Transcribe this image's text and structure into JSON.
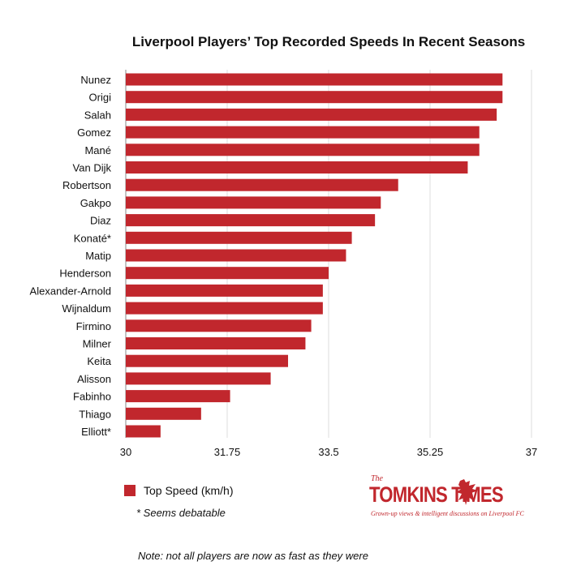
{
  "chart_data": {
    "type": "bar",
    "orientation": "horizontal",
    "title": "Liverpool Players’ Top Recorded Speeds In Recent Seasons",
    "categories": [
      "Nunez",
      "Origi",
      "Salah",
      "Gomez",
      "Mané",
      "Van Dijk",
      "Robertson",
      "Gakpo",
      "Diaz",
      "Konaté*",
      "Matip",
      "Henderson",
      "Alexander-Arnold",
      "Wijnaldum",
      "Firmino",
      "Milner",
      "Keita",
      "Alisson",
      "Fabinho",
      "Thiago",
      "Elliott*"
    ],
    "series": [
      {
        "name": "Top Speed (km/h)",
        "values": [
          36.5,
          36.5,
          36.4,
          36.1,
          36.1,
          35.9,
          34.7,
          34.4,
          34.3,
          33.9,
          33.8,
          33.5,
          33.4,
          33.4,
          33.2,
          33.1,
          32.8,
          32.5,
          31.8,
          31.3,
          30.6
        ]
      }
    ],
    "xlim": [
      30,
      37
    ],
    "xticks": [
      "30",
      "31.75",
      "33.5",
      "35.25",
      "37"
    ],
    "xtick_values": [
      30,
      31.75,
      33.5,
      35.25,
      37
    ],
    "xlabel": "",
    "ylabel": "",
    "grid": true,
    "legend_position": "bottom-left",
    "bar_color": "#c1272d"
  },
  "legend": {
    "label": "Top Speed (km/h)"
  },
  "footnote": "* Seems debatable",
  "note": "Note: not all players are now as fast as they were",
  "logo": {
    "the": "The",
    "name": "TOMKINS TIMES",
    "tagline": "Grown-up views & intelligent discussions on Liverpool FC",
    "color": "#c1272d"
  }
}
